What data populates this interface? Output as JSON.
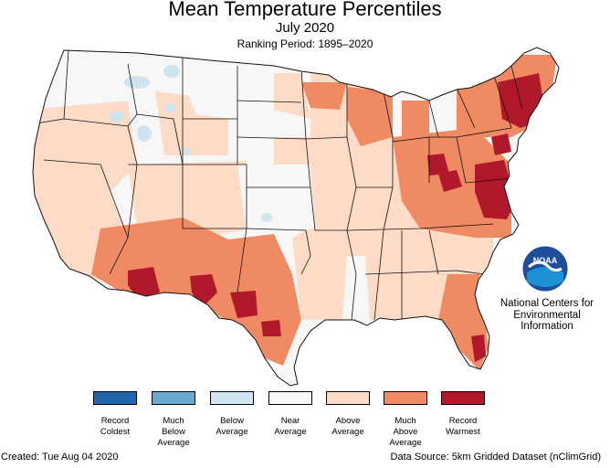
{
  "header": {
    "title": "Mean Temperature Percentiles",
    "subtitle": "July 2020",
    "ranking": "Ranking Period: 1895–2020"
  },
  "logo": {
    "text": "NOAA",
    "agency_line1": "National Centers for",
    "agency_line2": "Environmental",
    "agency_line3": "Information"
  },
  "legend": [
    {
      "line1": "Record",
      "line2": "Coldest",
      "line3": "",
      "color": "#2166ac"
    },
    {
      "line1": "Much",
      "line2": "Below",
      "line3": "Average",
      "color": "#67a9cf"
    },
    {
      "line1": "Below",
      "line2": "Average",
      "line3": "",
      "color": "#d1e5f0"
    },
    {
      "line1": "Near",
      "line2": "Average",
      "line3": "",
      "color": "#f7f7f7"
    },
    {
      "line1": "Above",
      "line2": "Average",
      "line3": "",
      "color": "#fddbc7"
    },
    {
      "line1": "Much",
      "line2": "Above",
      "line3": "Average",
      "color": "#ef8a62"
    },
    {
      "line1": "Record",
      "line2": "Warmest",
      "line3": "",
      "color": "#b2182b"
    }
  ],
  "footer": {
    "created": "Created: Tue Aug 04 2020",
    "source": "Data Source: 5km Gridded Dataset (nClimGrid)"
  }
}
